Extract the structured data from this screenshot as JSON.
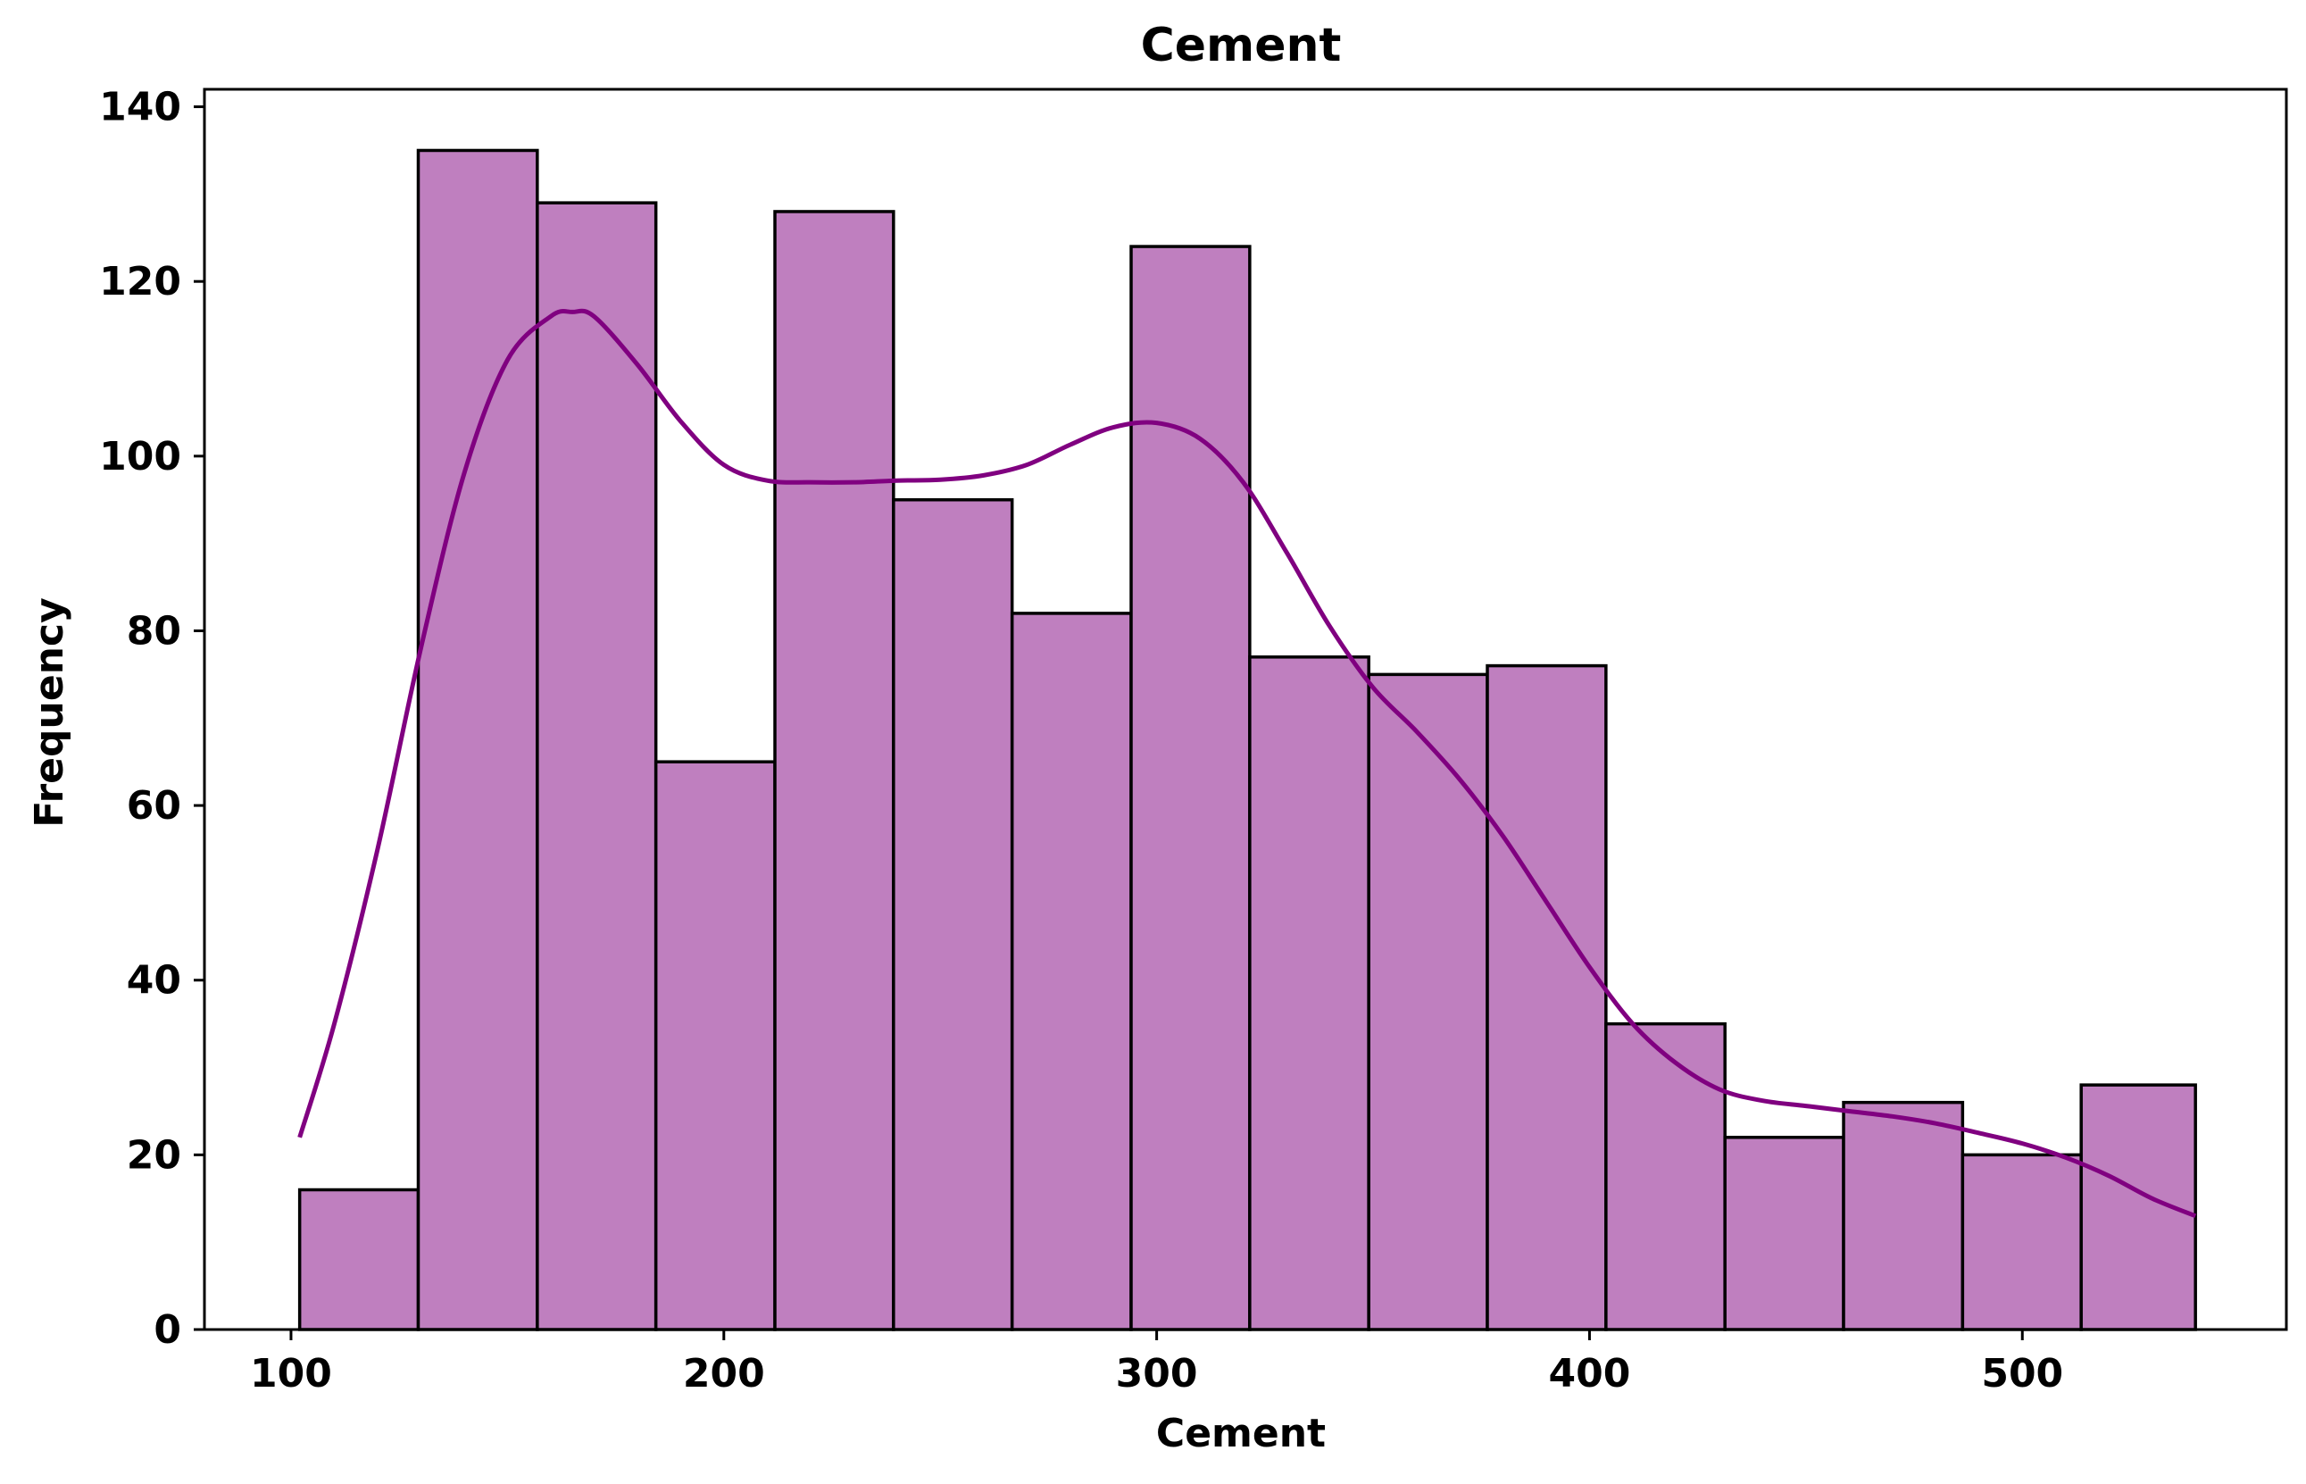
{
  "chart_data": {
    "type": "bar",
    "title": "Cement",
    "xlabel": "Cement",
    "ylabel": "Frequency",
    "xlim": [
      80.0,
      561.0
    ],
    "ylim": [
      0,
      142
    ],
    "x_ticks": [
      100,
      200,
      300,
      400,
      500
    ],
    "y_ticks": [
      0,
      20,
      40,
      60,
      80,
      100,
      120,
      140
    ],
    "bin_edges": [
      102.0,
      129.4,
      156.9,
      184.3,
      211.8,
      239.2,
      266.6,
      294.1,
      321.5,
      349.0,
      376.4,
      403.8,
      431.3,
      458.7,
      486.2,
      513.6,
      540.0
    ],
    "values": [
      16,
      135,
      129,
      65,
      128,
      95,
      82,
      124,
      77,
      75,
      76,
      35,
      22,
      26,
      20,
      28
    ],
    "kde": {
      "x": [
        102,
        110,
        120,
        130,
        140,
        150,
        160,
        165,
        170,
        180,
        190,
        200,
        210,
        220,
        230,
        240,
        250,
        260,
        270,
        280,
        290,
        300,
        310,
        320,
        330,
        340,
        350,
        360,
        370,
        380,
        390,
        400,
        410,
        420,
        430,
        440,
        450,
        460,
        470,
        480,
        490,
        500,
        510,
        520,
        530,
        540
      ],
      "y": [
        22,
        35,
        55,
        78,
        98,
        111,
        116,
        116.5,
        116,
        110.5,
        104,
        99,
        97.2,
        97,
        97,
        97.2,
        97.3,
        97.8,
        99,
        101.3,
        103.3,
        103.8,
        102,
        97,
        89,
        80.5,
        73.5,
        68.5,
        63,
        56.5,
        49,
        41.5,
        35,
        30.5,
        27.5,
        26.2,
        25.6,
        25,
        24.4,
        23.6,
        22.5,
        21.3,
        19.7,
        17.6,
        15,
        13
      ]
    },
    "grid": false,
    "legend": "none",
    "colors": {
      "bar_fill": "#bf7fbf",
      "bar_edge": "#000000",
      "kde_line": "#800080"
    }
  }
}
